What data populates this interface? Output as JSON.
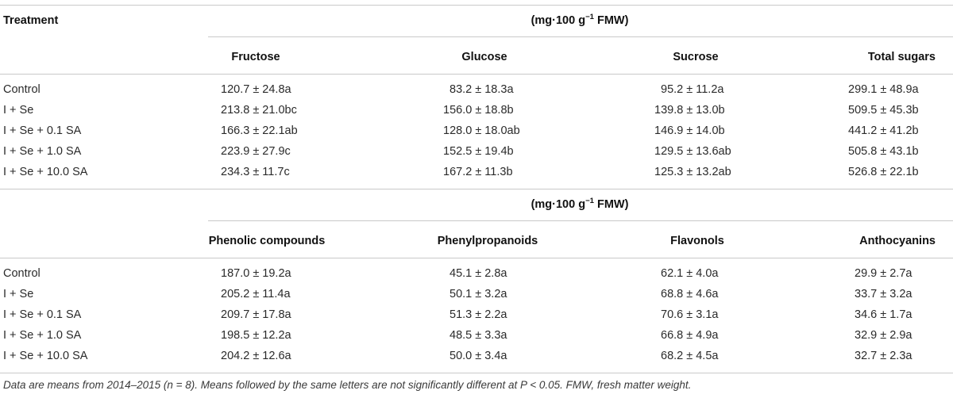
{
  "header": {
    "treatment": "Treatment",
    "unit_1": {
      "pre": "(mg·100 g",
      "sup": "−1",
      "post": " FMW)"
    },
    "unit_2": {
      "pre": "(mg·100 g",
      "sup": "−1",
      "post": " FMW)"
    }
  },
  "section1": {
    "columns": [
      "Fructose",
      "Glucose",
      "Sucrose",
      "Total sugars"
    ],
    "rows": [
      {
        "label": "Control",
        "values": [
          "120.7 ± 24.8a",
          "83.2 ± 18.3a",
          "95.2 ± 11.2a",
          "299.1 ± 48.9a"
        ]
      },
      {
        "label": "I + Se",
        "values": [
          "213.8 ± 21.0bc",
          "156.0 ± 18.8b",
          "139.8 ± 13.0b",
          "509.5 ± 45.3b"
        ]
      },
      {
        "label": "I + Se + 0.1 SA",
        "values": [
          "166.3 ± 22.1ab",
          "128.0 ± 18.0ab",
          "146.9 ± 14.0b",
          "441.2 ± 41.2b"
        ]
      },
      {
        "label": "I + Se + 1.0 SA",
        "values": [
          "223.9 ± 27.9c",
          "152.5 ± 19.4b",
          "129.5 ± 13.6ab",
          "505.8 ± 43.1b"
        ]
      },
      {
        "label": "I + Se + 10.0 SA",
        "values": [
          "234.3 ± 11.7c",
          "167.2 ± 11.3b",
          "125.3 ± 13.2ab",
          "526.8 ± 22.1b"
        ]
      }
    ]
  },
  "section2": {
    "columns": [
      "Phenolic compounds",
      "Phenylpropanoids",
      "Flavonols",
      "Anthocyanins"
    ],
    "rows": [
      {
        "label": "Control",
        "values": [
          "187.0 ± 19.2a",
          "45.1 ± 2.8a",
          "62.1 ± 4.0a",
          "29.9 ± 2.7a"
        ]
      },
      {
        "label": "I + Se",
        "values": [
          "205.2 ± 11.4a",
          "50.1 ± 3.2a",
          "68.8 ± 4.6a",
          "33.7 ± 3.2a"
        ]
      },
      {
        "label": "I + Se + 0.1 SA",
        "values": [
          "209.7 ± 17.8a",
          "51.3 ± 2.2a",
          "70.6 ± 3.1a",
          "34.6 ± 1.7a"
        ]
      },
      {
        "label": "I + Se + 1.0 SA",
        "values": [
          "198.5 ± 12.2a",
          "48.5 ± 3.3a",
          "66.8 ± 4.9a",
          "32.9 ± 2.9a"
        ]
      },
      {
        "label": "I + Se + 10.0 SA",
        "values": [
          "204.2 ± 12.6a",
          "50.0 ± 3.4a",
          "68.2 ± 4.5a",
          "32.7 ± 2.3a"
        ]
      }
    ]
  },
  "footnote": "Data are means from 2014–2015 (n = 8). Means followed by the same letters are not significantly different at P < 0.05. FMW, fresh matter weight."
}
